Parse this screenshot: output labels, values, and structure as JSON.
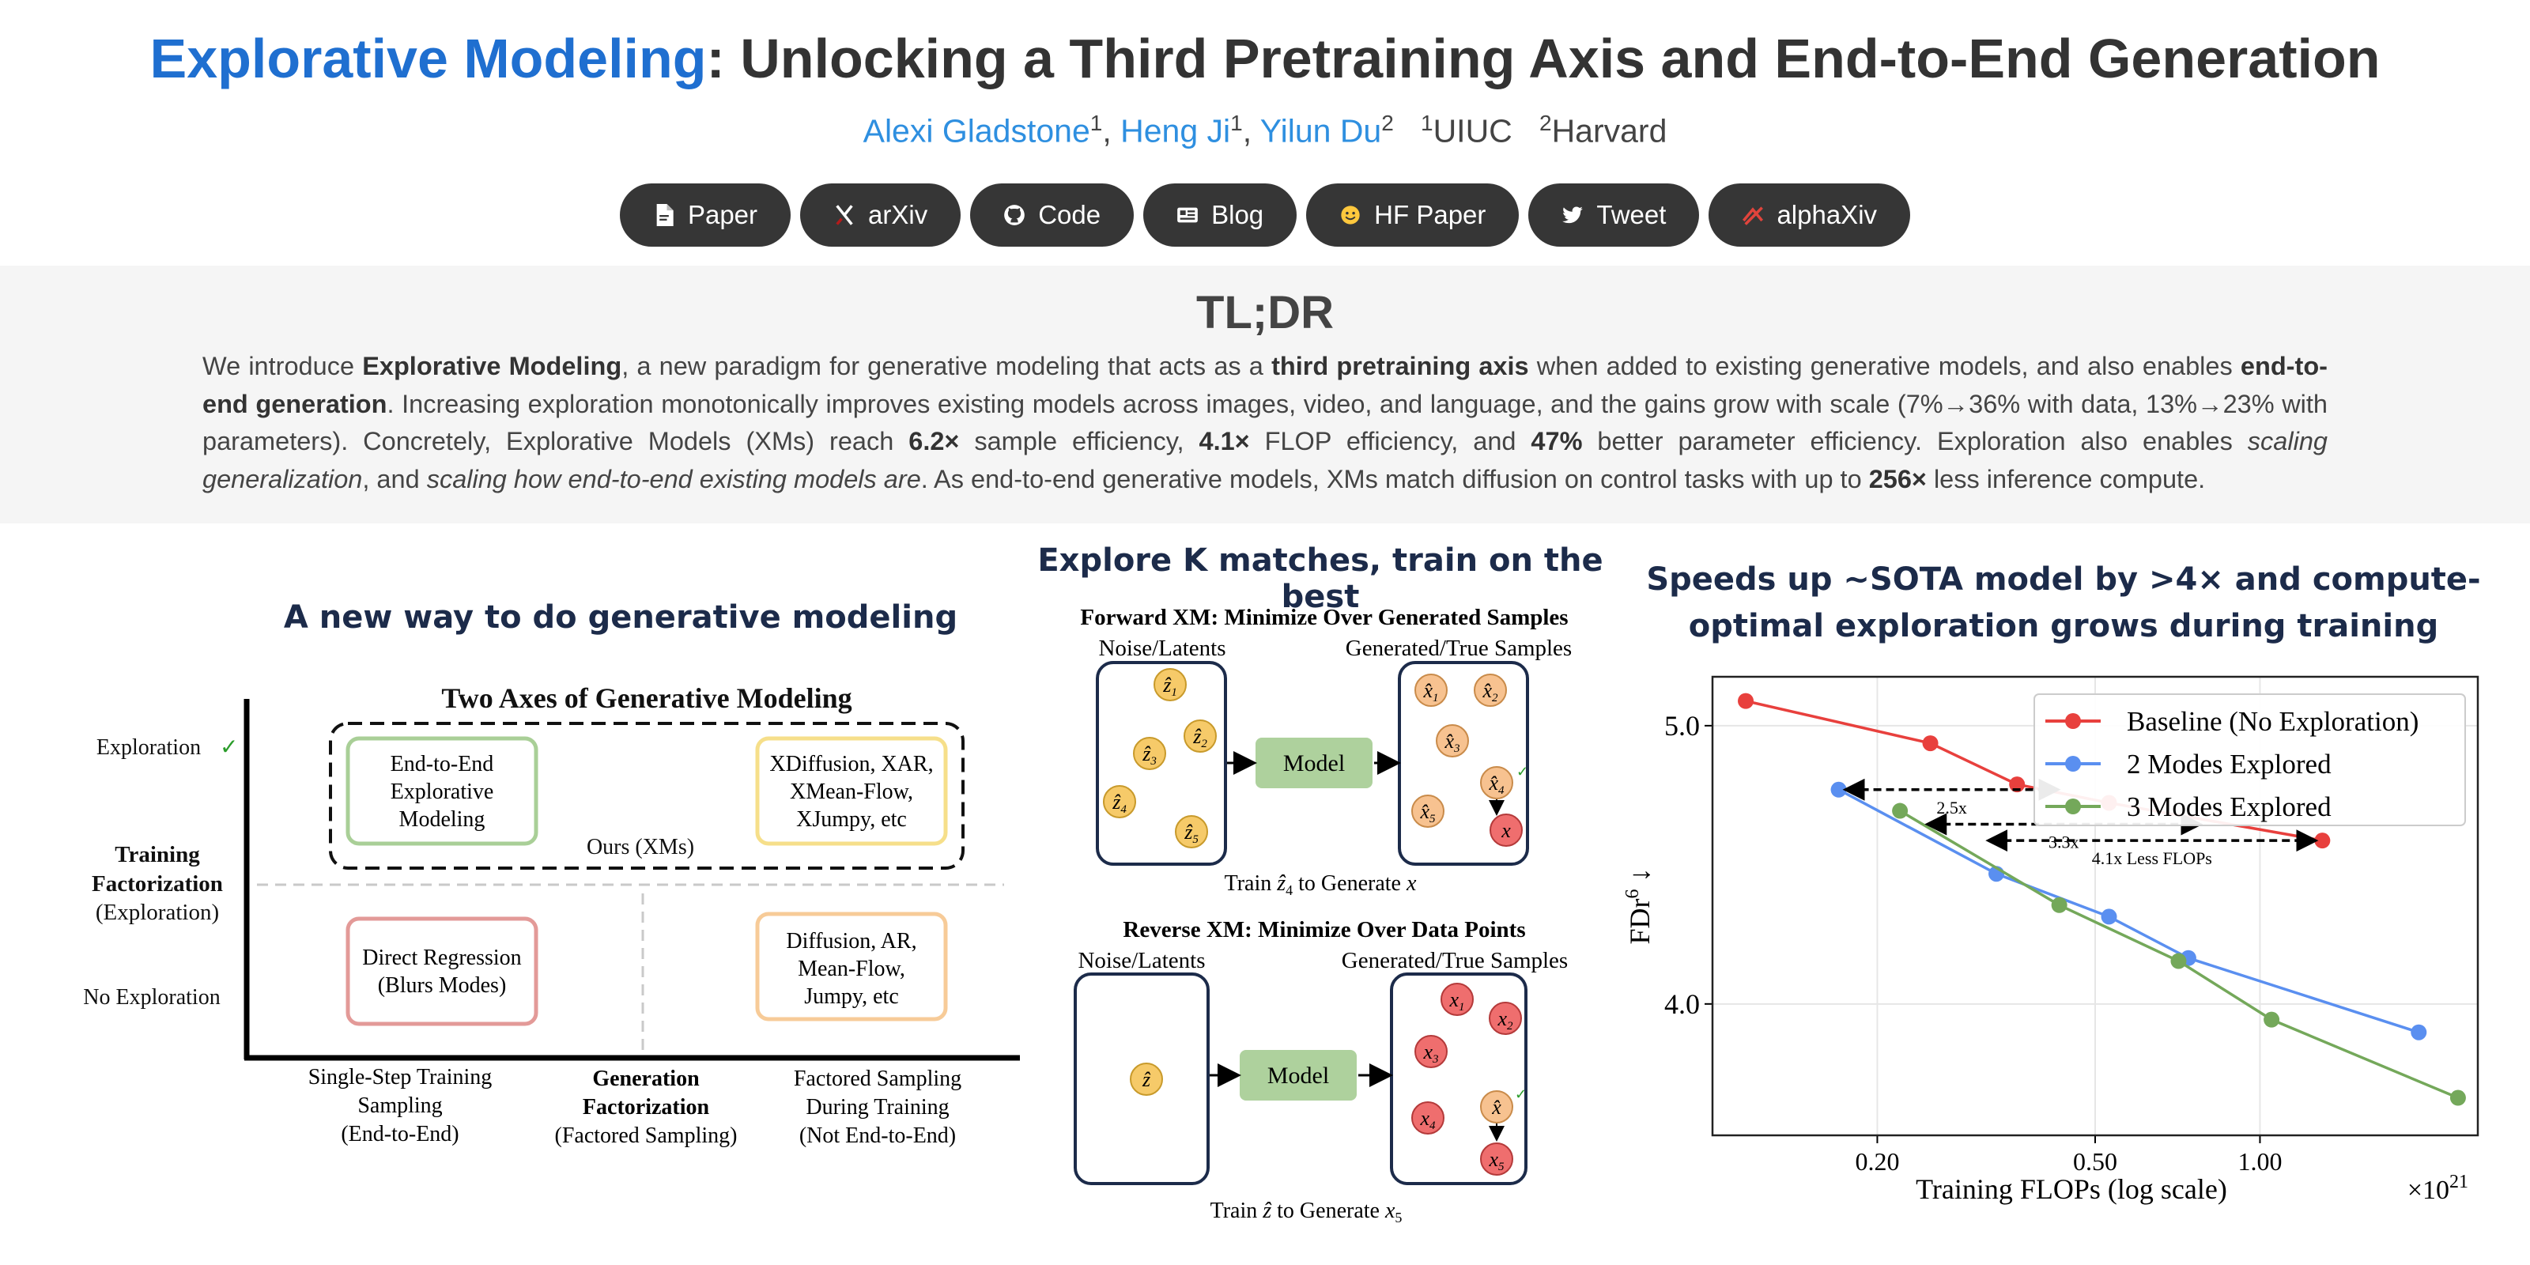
{
  "header": {
    "title_accent": "Explorative Modeling",
    "title_rest": ": Unlocking a Third Pretraining Axis and End-to-End Generation",
    "authors": [
      {
        "name": "Alexi Gladstone",
        "sup": "1"
      },
      {
        "name": "Heng Ji",
        "sup": "1"
      },
      {
        "name": "Yilun Du",
        "sup": "2"
      }
    ],
    "affiliations": [
      {
        "sup": "1",
        "name": "UIUC"
      },
      {
        "sup": "2",
        "name": "Harvard"
      }
    ],
    "buttons": [
      {
        "label": "Paper",
        "icon": "pdf-icon"
      },
      {
        "label": "arXiv",
        "icon": "arxiv-icon"
      },
      {
        "label": "Code",
        "icon": "github-icon"
      },
      {
        "label": "Blog",
        "icon": "blog-icon"
      },
      {
        "label": "HF Paper",
        "icon": "huggingface-icon"
      },
      {
        "label": "Tweet",
        "icon": "twitter-icon"
      },
      {
        "label": "alphaXiv",
        "icon": "alphaxiv-icon"
      }
    ]
  },
  "tldr": {
    "heading": "TL;DR",
    "segments": [
      {
        "t": "We introduce ",
        "s": ""
      },
      {
        "t": "Explorative Modeling",
        "s": "b"
      },
      {
        "t": ", a new paradigm for generative modeling that acts as a ",
        "s": ""
      },
      {
        "t": "third pretraining axis",
        "s": "b"
      },
      {
        "t": " when added to existing generative models, and also enables ",
        "s": ""
      },
      {
        "t": "end-to-end generation",
        "s": "b"
      },
      {
        "t": ". Increasing exploration monotonically improves existing models across images, video, and language, and the gains grow with scale (7%→36% with data, 13%→23% with parameters). Concretely, Explorative Models (XMs) reach ",
        "s": ""
      },
      {
        "t": "6.2×",
        "s": "b"
      },
      {
        "t": " sample efficiency, ",
        "s": ""
      },
      {
        "t": "4.1×",
        "s": "b"
      },
      {
        "t": " FLOP efficiency, and ",
        "s": ""
      },
      {
        "t": "47%",
        "s": "b"
      },
      {
        "t": " better parameter efficiency. Exploration also enables ",
        "s": ""
      },
      {
        "t": "scaling generalization",
        "s": "i"
      },
      {
        "t": ", and ",
        "s": ""
      },
      {
        "t": "scaling how end-to-end existing models are",
        "s": "i"
      },
      {
        "t": ". As end-to-end generative models, XMs match diffusion on control tasks with up to ",
        "s": ""
      },
      {
        "t": "256×",
        "s": "b"
      },
      {
        "t": " less inference compute.",
        "s": ""
      }
    ]
  },
  "left_panel": {
    "heading": "A new way to do generative modeling",
    "figure_title": "Two Axes of Generative Modeling",
    "y_top": "Exploration",
    "y_mid_bold1": "Training",
    "y_mid_bold2": "Factorization",
    "y_mid_sub": "(Exploration)",
    "y_bottom": "No Exploration",
    "box_e2e": [
      "End-to-End",
      "Explorative",
      "Modeling"
    ],
    "box_xdiff": [
      "XDiffusion, XAR,",
      "XMean-Flow,",
      "XJumpy, etc"
    ],
    "ours": "Ours (XMs)",
    "box_direct": [
      "Direct Regression",
      "(Blurs Modes)"
    ],
    "box_diff": [
      "Diffusion, AR,",
      "Mean-Flow,",
      "Jumpy, etc"
    ],
    "x_left": [
      "Single-Step Training",
      "Sampling",
      "(End-to-End)"
    ],
    "x_mid_bold": [
      "Generation",
      "Factorization"
    ],
    "x_mid_sub": "(Factored Sampling)",
    "x_right": [
      "Factored Sampling",
      "During Training",
      "(Not End-to-End)"
    ],
    "colors": {
      "green": "#a9cf97",
      "yellow": "#f6df8a",
      "red": "#e39a98",
      "orange": "#f7cb98"
    }
  },
  "middle_panel": {
    "heading": "Explore K matches, train on the best",
    "forward_title": "Forward XM: Minimize Over Generated Samples",
    "reverse_title": "Reverse XM: Minimize Over Data Points",
    "noise_label": "Noise/Latents",
    "gen_label": "Generated/True Samples",
    "model_label": "Model",
    "forward_caption_a": "Train ",
    "forward_caption_b": "ẑ",
    "forward_caption_sub": "4",
    "forward_caption_c": " to Generate ",
    "forward_caption_d": "x",
    "reverse_caption_a": "Train ",
    "reverse_caption_b": "ẑ",
    "reverse_caption_c": " to Generate ",
    "reverse_caption_d": "x",
    "reverse_caption_sub": "5",
    "forward_latents": [
      "1",
      "2",
      "3",
      "4",
      "5"
    ],
    "forward_samples": [
      "1",
      "2",
      "3",
      "4",
      "5"
    ],
    "reverse_points": [
      "1",
      "2",
      "3",
      "4",
      "5"
    ]
  },
  "right_panel": {
    "heading_line1": "Speeds up ~SOTA model by >4× and compute-",
    "heading_line2": "optimal exploration grows during training"
  },
  "chart_data": {
    "type": "line",
    "xlabel": "Training FLOPs (log scale)",
    "x_multiplier": "×10",
    "x_multiplier_exp": "21",
    "ylabel": "FDr",
    "ylabel_sup": "6",
    "ylabel_arrow": "↓",
    "x_scale": "log",
    "y_scale": "log",
    "xlim": [
      0.1,
      2.5
    ],
    "ylim": [
      3.6,
      5.2
    ],
    "xticks": [
      0.2,
      0.5,
      1.0
    ],
    "xtick_labels": [
      "0.20",
      "0.50",
      "1.00"
    ],
    "yticks": [
      4.0,
      5.0
    ],
    "ytick_labels": [
      "4.0",
      "5.0"
    ],
    "grid": true,
    "legend_position": "top-right",
    "series": [
      {
        "name": "Baseline (No Exploration)",
        "color": "#e8403d",
        "x": [
          0.115,
          0.25,
          0.36,
          0.53,
          1.3
        ],
        "y": [
          5.1,
          4.93,
          4.77,
          4.7,
          4.56
        ]
      },
      {
        "name": "2 Modes Explored",
        "color": "#5a8ff0",
        "x": [
          0.17,
          0.33,
          0.53,
          0.74,
          1.95
        ],
        "y": [
          4.75,
          4.44,
          4.29,
          4.15,
          3.91
        ]
      },
      {
        "name": "3 Modes Explored",
        "color": "#74a85a",
        "x": [
          0.22,
          0.43,
          0.71,
          1.05,
          2.3
        ],
        "y": [
          4.67,
          4.33,
          4.14,
          3.95,
          3.71
        ]
      }
    ],
    "annotations": [
      {
        "text": "2.5x",
        "x_from": 0.17,
        "x_to": 0.44,
        "y": 4.75
      },
      {
        "text": "3.3x",
        "x_from": 0.24,
        "x_to": 0.8,
        "y": 4.62
      },
      {
        "text": "4.1x Less FLOPs",
        "x_from": 0.31,
        "x_to": 1.3,
        "y": 4.56
      }
    ]
  }
}
